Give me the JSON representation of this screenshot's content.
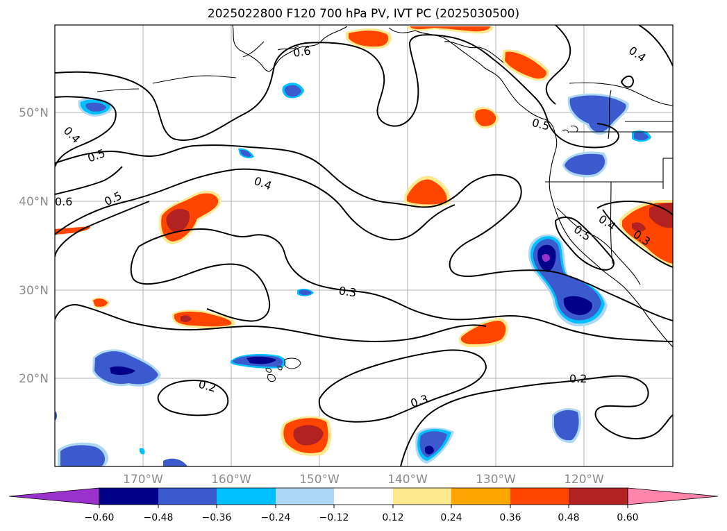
{
  "title": "2025022800 F120 700 hPa PV, IVT PC (2025030500)",
  "colors": {
    "neg_extend": "#9932cc",
    "neg_060": "#00008b",
    "neg_048": "#3a5acd",
    "neg_036": "#00bfff",
    "neg_024": "#add8f5",
    "neutral": "#ffffff",
    "pos_012": "#ffe98f",
    "pos_024": "#ffa500",
    "pos_036": "#ff4500",
    "pos_048": "#b22222",
    "pos_extend": "#ff85ad"
  },
  "map": {
    "lon_ticks": [
      "170°W",
      "160°W",
      "150°W",
      "140°W",
      "130°W",
      "120°W"
    ],
    "lat_ticks": [
      "50°N",
      "40°N",
      "30°N",
      "20°N"
    ],
    "contour_labels": [
      "0.6",
      "0.4",
      "0.5",
      "0.5",
      "0.4",
      "0.6",
      "0.3",
      "0.2",
      "0.3",
      "0.2",
      "0.5",
      "0.4",
      "0.5",
      "0.3",
      "0.4"
    ]
  },
  "colorbar": {
    "ticks": [
      "−0.60",
      "−0.48",
      "−0.36",
      "−0.24",
      "−0.12",
      "0.12",
      "0.24",
      "0.36",
      "0.48",
      "0.60"
    ]
  }
}
